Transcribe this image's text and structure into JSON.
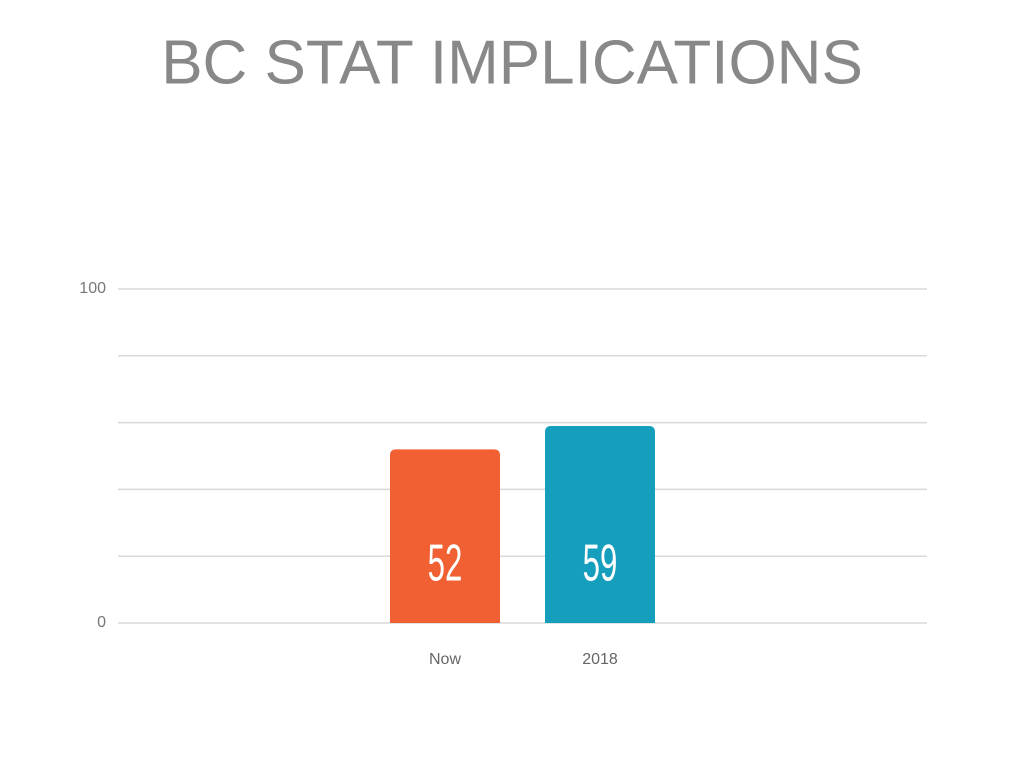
{
  "chart_data": {
    "type": "bar",
    "title": "BC STAT IMPLICATIONS",
    "categories": [
      "Now",
      "2018"
    ],
    "values": [
      52,
      59
    ],
    "colors": [
      "#f06033",
      "#169fbd"
    ],
    "ylim": [
      0,
      100
    ],
    "yticks": [
      0,
      100
    ],
    "minor_yticks": [
      20,
      40,
      60,
      80
    ],
    "grid": true
  }
}
